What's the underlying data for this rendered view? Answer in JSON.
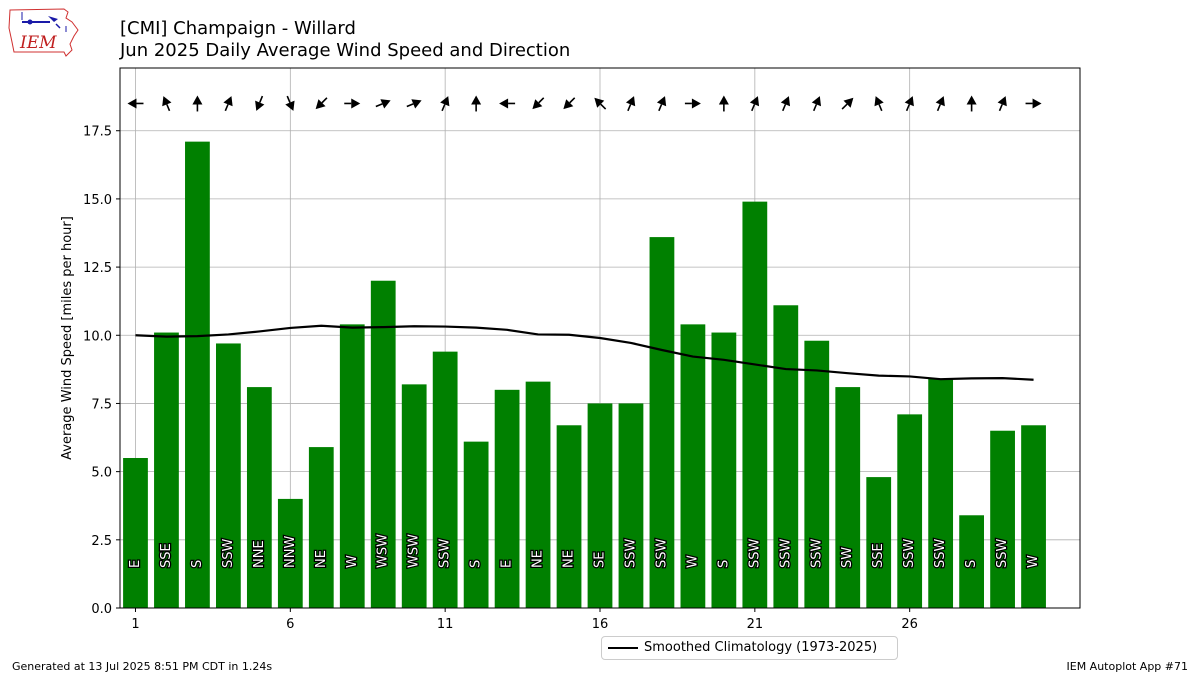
{
  "header": {
    "title": "[CMI] Champaign - Willard",
    "subtitle": "Jun 2025 Daily Average Wind Speed and Direction",
    "logo_text": "IEM"
  },
  "footer": {
    "generated": "Generated at 13 Jul 2025 8:51 PM CDT in 1.24s",
    "app": "IEM Autoplot App #71"
  },
  "legend": {
    "climatology_label": "Smoothed Climatology (1973-2025)"
  },
  "colors": {
    "bar": "#008000",
    "climatology": "#000000",
    "grid": "#b0b0b0"
  },
  "chart_data": {
    "type": "bar",
    "ylabel": "Average Wind Speed [miles per hour]",
    "xlim": [
      0.5,
      31.5
    ],
    "ylim": [
      0,
      19.8
    ],
    "x_ticks": [
      1,
      6,
      11,
      16,
      21,
      26
    ],
    "y_ticks": [
      "0.0",
      "2.5",
      "5.0",
      "7.5",
      "10.0",
      "12.5",
      "15.0",
      "17.5"
    ],
    "grid": true,
    "legend_position": "bottom-center",
    "days": [
      1,
      2,
      3,
      4,
      5,
      6,
      7,
      8,
      9,
      10,
      11,
      12,
      13,
      14,
      15,
      16,
      17,
      18,
      19,
      20,
      21,
      22,
      23,
      24,
      25,
      26,
      27,
      28,
      29,
      30
    ],
    "speeds": [
      5.5,
      10.1,
      17.1,
      9.7,
      8.1,
      4.0,
      5.9,
      10.4,
      12.0,
      8.2,
      9.4,
      6.1,
      8.0,
      8.3,
      6.7,
      7.5,
      7.5,
      13.6,
      10.4,
      10.1,
      14.9,
      11.1,
      9.8,
      8.1,
      4.8,
      7.1,
      8.4,
      3.4,
      6.5,
      6.7
    ],
    "directions": [
      "E",
      "SSE",
      "S",
      "SSW",
      "NNE",
      "NNW",
      "NE",
      "W",
      "WSW",
      "WSW",
      "SSW",
      "S",
      "E",
      "NE",
      "NE",
      "SE",
      "SSW",
      "SSW",
      "W",
      "S",
      "SSW",
      "SSW",
      "SSW",
      "SW",
      "SSE",
      "SSW",
      "SSW",
      "S",
      "SSW",
      "W"
    ],
    "series": [
      {
        "name": "Smoothed Climatology (1973-2025)",
        "x": [
          1,
          2,
          3,
          4,
          5,
          6,
          7,
          8,
          9,
          10,
          11,
          12,
          13,
          14,
          15,
          16,
          17,
          18,
          19,
          20,
          21,
          22,
          23,
          24,
          25,
          26,
          27,
          28,
          29,
          30
        ],
        "values": [
          10.0,
          9.95,
          9.97,
          10.03,
          10.14,
          10.27,
          10.35,
          10.28,
          10.3,
          10.33,
          10.32,
          10.28,
          10.2,
          10.03,
          10.02,
          9.9,
          9.72,
          9.46,
          9.22,
          9.1,
          8.93,
          8.76,
          8.71,
          8.61,
          8.52,
          8.49,
          8.39,
          8.42,
          8.43,
          8.37
        ]
      }
    ]
  }
}
